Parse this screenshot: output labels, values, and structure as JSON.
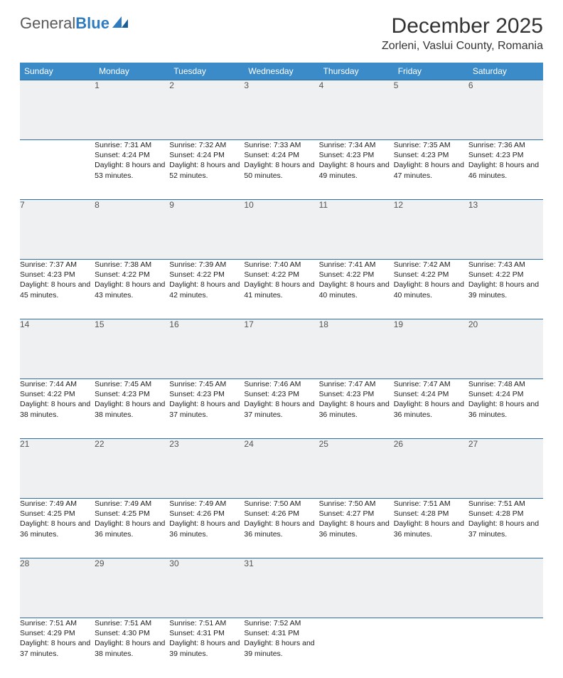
{
  "logo": {
    "word1": "General",
    "word2": "Blue"
  },
  "title": "December 2025",
  "location": "Zorleni, Vaslui County, Romania",
  "colors": {
    "header_bg": "#3b8bc8",
    "header_text": "#ffffff",
    "daynum_bg": "#eef0f1",
    "row_border": "#2f6fa3",
    "logo_gray": "#5a5a5a",
    "logo_blue": "#2f7bbf"
  },
  "weekdays": [
    "Sunday",
    "Monday",
    "Tuesday",
    "Wednesday",
    "Thursday",
    "Friday",
    "Saturday"
  ],
  "weeks": [
    {
      "nums": [
        "",
        "1",
        "2",
        "3",
        "4",
        "5",
        "6"
      ],
      "cells": [
        null,
        {
          "sunrise": "7:31 AM",
          "sunset": "4:24 PM",
          "daylight": "8 hours and 53 minutes."
        },
        {
          "sunrise": "7:32 AM",
          "sunset": "4:24 PM",
          "daylight": "8 hours and 52 minutes."
        },
        {
          "sunrise": "7:33 AM",
          "sunset": "4:24 PM",
          "daylight": "8 hours and 50 minutes."
        },
        {
          "sunrise": "7:34 AM",
          "sunset": "4:23 PM",
          "daylight": "8 hours and 49 minutes."
        },
        {
          "sunrise": "7:35 AM",
          "sunset": "4:23 PM",
          "daylight": "8 hours and 47 minutes."
        },
        {
          "sunrise": "7:36 AM",
          "sunset": "4:23 PM",
          "daylight": "8 hours and 46 minutes."
        }
      ]
    },
    {
      "nums": [
        "7",
        "8",
        "9",
        "10",
        "11",
        "12",
        "13"
      ],
      "cells": [
        {
          "sunrise": "7:37 AM",
          "sunset": "4:23 PM",
          "daylight": "8 hours and 45 minutes."
        },
        {
          "sunrise": "7:38 AM",
          "sunset": "4:22 PM",
          "daylight": "8 hours and 43 minutes."
        },
        {
          "sunrise": "7:39 AM",
          "sunset": "4:22 PM",
          "daylight": "8 hours and 42 minutes."
        },
        {
          "sunrise": "7:40 AM",
          "sunset": "4:22 PM",
          "daylight": "8 hours and 41 minutes."
        },
        {
          "sunrise": "7:41 AM",
          "sunset": "4:22 PM",
          "daylight": "8 hours and 40 minutes."
        },
        {
          "sunrise": "7:42 AM",
          "sunset": "4:22 PM",
          "daylight": "8 hours and 40 minutes."
        },
        {
          "sunrise": "7:43 AM",
          "sunset": "4:22 PM",
          "daylight": "8 hours and 39 minutes."
        }
      ]
    },
    {
      "nums": [
        "14",
        "15",
        "16",
        "17",
        "18",
        "19",
        "20"
      ],
      "cells": [
        {
          "sunrise": "7:44 AM",
          "sunset": "4:22 PM",
          "daylight": "8 hours and 38 minutes."
        },
        {
          "sunrise": "7:45 AM",
          "sunset": "4:23 PM",
          "daylight": "8 hours and 38 minutes."
        },
        {
          "sunrise": "7:45 AM",
          "sunset": "4:23 PM",
          "daylight": "8 hours and 37 minutes."
        },
        {
          "sunrise": "7:46 AM",
          "sunset": "4:23 PM",
          "daylight": "8 hours and 37 minutes."
        },
        {
          "sunrise": "7:47 AM",
          "sunset": "4:23 PM",
          "daylight": "8 hours and 36 minutes."
        },
        {
          "sunrise": "7:47 AM",
          "sunset": "4:24 PM",
          "daylight": "8 hours and 36 minutes."
        },
        {
          "sunrise": "7:48 AM",
          "sunset": "4:24 PM",
          "daylight": "8 hours and 36 minutes."
        }
      ]
    },
    {
      "nums": [
        "21",
        "22",
        "23",
        "24",
        "25",
        "26",
        "27"
      ],
      "cells": [
        {
          "sunrise": "7:49 AM",
          "sunset": "4:25 PM",
          "daylight": "8 hours and 36 minutes."
        },
        {
          "sunrise": "7:49 AM",
          "sunset": "4:25 PM",
          "daylight": "8 hours and 36 minutes."
        },
        {
          "sunrise": "7:49 AM",
          "sunset": "4:26 PM",
          "daylight": "8 hours and 36 minutes."
        },
        {
          "sunrise": "7:50 AM",
          "sunset": "4:26 PM",
          "daylight": "8 hours and 36 minutes."
        },
        {
          "sunrise": "7:50 AM",
          "sunset": "4:27 PM",
          "daylight": "8 hours and 36 minutes."
        },
        {
          "sunrise": "7:51 AM",
          "sunset": "4:28 PM",
          "daylight": "8 hours and 36 minutes."
        },
        {
          "sunrise": "7:51 AM",
          "sunset": "4:28 PM",
          "daylight": "8 hours and 37 minutes."
        }
      ]
    },
    {
      "nums": [
        "28",
        "29",
        "30",
        "31",
        "",
        "",
        ""
      ],
      "cells": [
        {
          "sunrise": "7:51 AM",
          "sunset": "4:29 PM",
          "daylight": "8 hours and 37 minutes."
        },
        {
          "sunrise": "7:51 AM",
          "sunset": "4:30 PM",
          "daylight": "8 hours and 38 minutes."
        },
        {
          "sunrise": "7:51 AM",
          "sunset": "4:31 PM",
          "daylight": "8 hours and 39 minutes."
        },
        {
          "sunrise": "7:52 AM",
          "sunset": "4:31 PM",
          "daylight": "8 hours and 39 minutes."
        },
        null,
        null,
        null
      ]
    }
  ],
  "labels": {
    "sunrise": "Sunrise:",
    "sunset": "Sunset:",
    "daylight": "Daylight:"
  }
}
